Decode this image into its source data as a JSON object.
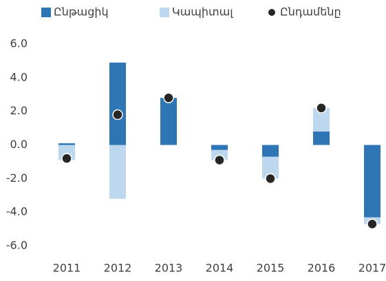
{
  "chart_data": {
    "type": "bar",
    "stacked": true,
    "categories": [
      "2011",
      "2012",
      "2013",
      "2014",
      "2015",
      "2016",
      "2017"
    ],
    "series": [
      {
        "name": "Ընթացիկ",
        "color": "#2e75b6",
        "values": [
          0.1,
          4.9,
          2.8,
          -0.3,
          -0.7,
          0.8,
          -4.3
        ]
      },
      {
        "name": "Կապիտալ",
        "color": "#bdd7ee",
        "values": [
          -0.9,
          -3.2,
          0,
          -0.6,
          -1.3,
          1.4,
          -0.4
        ]
      },
      {
        "name": "Ընդամենը",
        "color": "#262626",
        "type": "scatter",
        "values": [
          -0.8,
          1.8,
          2.8,
          -0.9,
          -2.0,
          2.2,
          -4.7
        ]
      }
    ],
    "ylim": [
      -6,
      6
    ],
    "yticks": [
      {
        "value": 6,
        "label": "6.0"
      },
      {
        "value": 4,
        "label": "4.0"
      },
      {
        "value": 2,
        "label": "2.0"
      },
      {
        "value": 0,
        "label": "0.0"
      },
      {
        "value": -2,
        "label": "-2.0"
      },
      {
        "value": -4,
        "label": "-4.0"
      },
      {
        "value": -6,
        "label": "-6.0"
      }
    ],
    "legend": "top",
    "grid": false
  }
}
